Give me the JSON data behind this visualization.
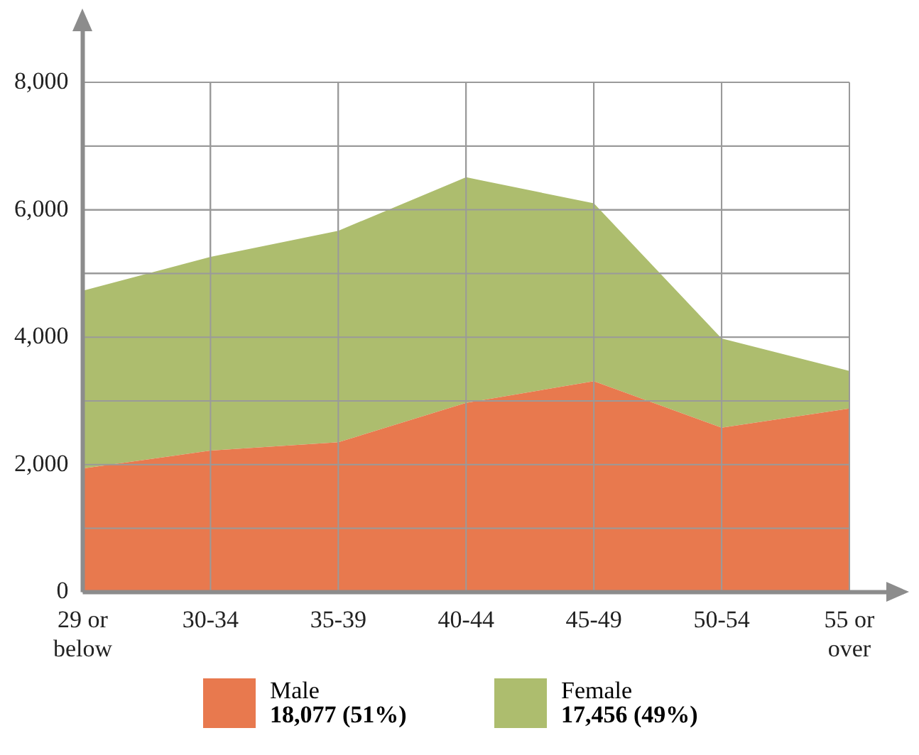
{
  "chart_data": {
    "type": "area",
    "stacked": true,
    "categories": [
      "29 or below",
      "30-34",
      "35-39",
      "40-44",
      "45-49",
      "50-54",
      "55 or over"
    ],
    "series": [
      {
        "name": "Male",
        "color": "#e8794e",
        "values": [
          1940,
          2220,
          2350,
          2970,
          3310,
          2580,
          2880
        ]
      },
      {
        "name": "Female",
        "color": "#adbd6e",
        "values": [
          2790,
          3040,
          3320,
          3540,
          2790,
          1400,
          590
        ]
      }
    ],
    "ylim": [
      0,
      8000
    ],
    "yticks": [
      0,
      {
        "value": 1000,
        "label": null
      },
      {
        "value": 2000,
        "label": "2,000"
      },
      {
        "value": 3000,
        "label": null
      },
      {
        "value": 4000,
        "label": "4,000"
      },
      {
        "value": 5000,
        "label": null
      },
      {
        "value": 6000,
        "label": "6,000"
      },
      {
        "value": 7000,
        "label": null
      },
      {
        "value": 8000,
        "label": "8,000"
      }
    ],
    "grid": true,
    "legend": "bottom",
    "annotations": [
      "18,077 (51%)",
      "17,456 (49%)"
    ]
  }
}
